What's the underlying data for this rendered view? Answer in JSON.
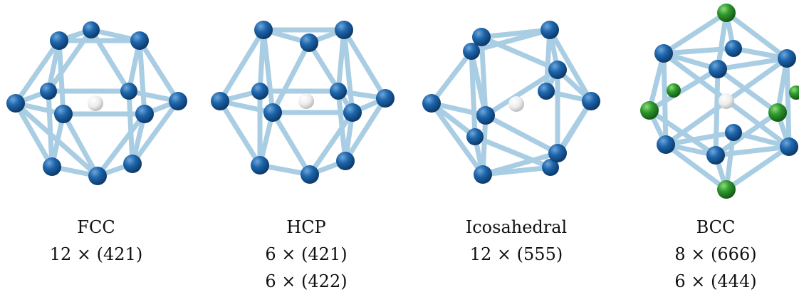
{
  "colors": {
    "bond": "#a9cde3",
    "bond_dark": "#6f8fa3",
    "atom_blue": "#1c5fa3",
    "atom_green": "#2a8f2a",
    "center_atom": "#f2f2f2"
  },
  "panels": [
    {
      "name": "FCC",
      "lines": [
        "12 × (421)"
      ]
    },
    {
      "name": "HCP",
      "lines": [
        "6 × (421)",
        "6 × (422)"
      ]
    },
    {
      "name": "Icosahedral",
      "lines": [
        "12 × (555)"
      ]
    },
    {
      "name": "BCC",
      "lines": [
        "8 × (666)",
        "6 × (444)"
      ]
    }
  ]
}
